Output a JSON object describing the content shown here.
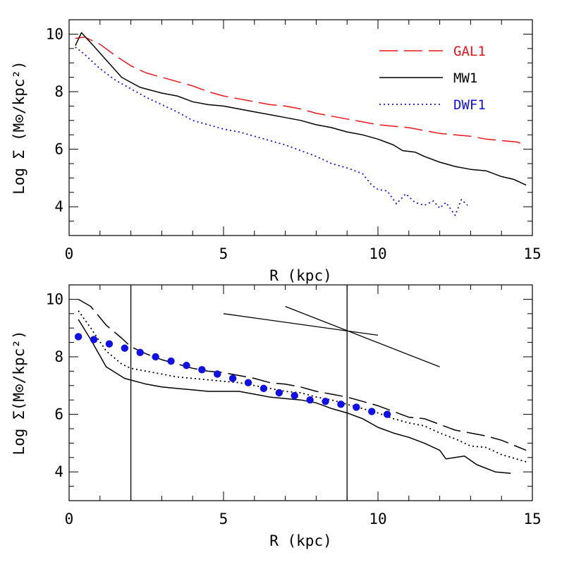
{
  "colors": {
    "red": "#e8141b",
    "black": "#000000",
    "blue": "#1010e6"
  },
  "chart_data": [
    {
      "type": "line",
      "title": "",
      "xlabel": "R (kpc)",
      "ylabel": "Log Σ (M⊙/kpc²)",
      "xlim": [
        0,
        15
      ],
      "ylim": [
        3,
        10.5
      ],
      "xticks": [
        0,
        5,
        10,
        15
      ],
      "yticks": [
        4,
        6,
        8,
        10
      ],
      "legend": "top-right",
      "series": [
        {
          "name": "GAL1",
          "color": "#e8141b",
          "dash": "long-dash",
          "x": [
            0.2,
            0.5,
            1.0,
            1.5,
            2.0,
            2.5,
            3.0,
            3.5,
            4.0,
            4.5,
            5.0,
            5.5,
            6.0,
            6.5,
            7.0,
            7.5,
            8.0,
            8.5,
            9.0,
            9.5,
            10.0,
            10.5,
            11.0,
            11.5,
            12.0,
            12.5,
            13.0,
            13.5,
            14.0,
            14.5,
            14.8
          ],
          "y": [
            9.85,
            9.9,
            9.65,
            9.25,
            8.9,
            8.65,
            8.5,
            8.35,
            8.2,
            8.0,
            7.85,
            7.75,
            7.65,
            7.55,
            7.5,
            7.4,
            7.25,
            7.15,
            7.05,
            6.95,
            6.85,
            6.8,
            6.75,
            6.65,
            6.55,
            6.5,
            6.45,
            6.35,
            6.3,
            6.25,
            6.15
          ]
        },
        {
          "name": "MW1",
          "color": "#000000",
          "dash": "solid",
          "x": [
            0.2,
            0.4,
            0.7,
            1.2,
            1.7,
            2.3,
            3.0,
            3.5,
            4.0,
            4.5,
            5.0,
            5.5,
            6.0,
            6.5,
            7.0,
            7.5,
            8.0,
            8.5,
            9.0,
            9.5,
            10.0,
            10.5,
            10.8,
            11.2,
            11.5,
            12.0,
            12.5,
            13.0,
            13.5,
            14.0,
            14.4,
            14.8
          ],
          "y": [
            9.6,
            10.05,
            9.7,
            9.1,
            8.5,
            8.15,
            7.95,
            7.85,
            7.65,
            7.55,
            7.5,
            7.4,
            7.3,
            7.2,
            7.1,
            7.0,
            6.85,
            6.75,
            6.6,
            6.5,
            6.35,
            6.15,
            5.95,
            5.9,
            5.75,
            5.55,
            5.4,
            5.3,
            5.25,
            5.05,
            4.95,
            4.75
          ]
        },
        {
          "name": "DWF1",
          "color": "#1010e6",
          "dash": "dotted",
          "x": [
            0.2,
            0.5,
            1.0,
            1.5,
            2.0,
            2.5,
            3.0,
            3.5,
            4.0,
            4.5,
            5.0,
            5.5,
            6.0,
            6.5,
            7.0,
            7.5,
            8.0,
            8.5,
            9.0,
            9.5,
            9.8,
            10.0,
            10.3,
            10.6,
            10.9,
            11.2,
            11.5,
            11.8,
            12.0,
            12.2,
            12.5,
            12.7,
            12.9
          ],
          "y": [
            9.55,
            9.3,
            8.8,
            8.4,
            8.1,
            7.8,
            7.55,
            7.3,
            7.0,
            6.85,
            6.7,
            6.6,
            6.45,
            6.3,
            6.15,
            5.95,
            5.75,
            5.5,
            5.35,
            5.15,
            4.75,
            4.6,
            4.55,
            4.1,
            4.45,
            4.15,
            4.05,
            4.2,
            3.95,
            4.15,
            3.7,
            4.25,
            4.05
          ]
        }
      ]
    },
    {
      "type": "line",
      "title": "",
      "xlabel": "R (kpc)",
      "ylabel": "Log Σ(M⊙/kpc²)",
      "xlim": [
        0,
        15
      ],
      "ylim": [
        3,
        10.5
      ],
      "xticks": [
        0,
        5,
        10,
        15
      ],
      "yticks": [
        4,
        6,
        8,
        10
      ],
      "vertical_lines": [
        2,
        9
      ],
      "series": [
        {
          "color": "#000000",
          "dash": "long-dash",
          "x": [
            0.3,
            0.7,
            1.2,
            1.7,
            2.0,
            2.5,
            3.0,
            3.5,
            4.0,
            4.5,
            5.0,
            5.5,
            6.0,
            6.5,
            7.0,
            7.5,
            8.0,
            8.5,
            9.0,
            9.5,
            10.0,
            10.5,
            11.0,
            11.5,
            12.0,
            12.5,
            13.0,
            13.5,
            14.0,
            14.8
          ],
          "y": [
            10.0,
            9.75,
            9.1,
            8.65,
            8.35,
            8.1,
            7.9,
            7.75,
            7.6,
            7.5,
            7.45,
            7.35,
            7.25,
            7.1,
            7.05,
            6.95,
            6.8,
            6.7,
            6.6,
            6.45,
            6.3,
            6.1,
            5.9,
            5.85,
            5.65,
            5.45,
            5.35,
            5.25,
            5.1,
            4.75
          ]
        },
        {
          "color": "#000000",
          "dash": "solid",
          "x": [
            0.3,
            0.7,
            1.2,
            1.8,
            2.5,
            3.0,
            3.5,
            4.0,
            4.5,
            5.0,
            5.5,
            6.0,
            6.5,
            7.0,
            7.5,
            8.0,
            8.5,
            9.0,
            9.5,
            10.0,
            10.5,
            11.0,
            11.5,
            12.0,
            12.2,
            12.8,
            13.2,
            13.8,
            14.3
          ],
          "y": [
            9.3,
            8.6,
            7.65,
            7.25,
            7.05,
            6.95,
            6.9,
            6.85,
            6.8,
            6.8,
            6.8,
            6.7,
            6.6,
            6.55,
            6.5,
            6.4,
            6.2,
            6.05,
            5.85,
            5.55,
            5.35,
            5.2,
            5.0,
            4.75,
            4.45,
            4.55,
            4.25,
            4.0,
            3.95
          ]
        },
        {
          "color": "#000000",
          "dash": "dotted",
          "x": [
            0.3,
            0.7,
            1.2,
            1.7,
            2.0,
            2.5,
            3.0,
            3.5,
            4.0,
            4.5,
            5.0,
            5.5,
            6.0,
            6.5,
            7.0,
            7.5,
            8.0,
            8.5,
            9.0,
            9.5,
            10.0,
            10.5,
            11.0,
            11.5,
            12.0,
            12.5,
            13.0,
            13.5,
            14.0,
            14.8
          ],
          "y": [
            9.6,
            9.0,
            8.2,
            7.75,
            7.6,
            7.5,
            7.4,
            7.3,
            7.25,
            7.2,
            7.15,
            7.1,
            7.0,
            6.9,
            6.8,
            6.75,
            6.6,
            6.5,
            6.35,
            6.2,
            6.05,
            5.85,
            5.7,
            5.6,
            5.35,
            5.15,
            4.9,
            4.85,
            4.6,
            4.35
          ]
        },
        {
          "color": "#1010e6",
          "dash": "markers",
          "x": [
            0.3,
            0.8,
            1.3,
            1.8,
            2.3,
            2.8,
            3.3,
            3.8,
            4.3,
            4.8,
            5.3,
            5.8,
            6.3,
            6.8,
            7.3,
            7.8,
            8.3,
            8.8,
            9.3,
            9.8,
            10.3
          ],
          "y": [
            8.7,
            8.6,
            8.45,
            8.3,
            8.15,
            8.0,
            7.85,
            7.7,
            7.55,
            7.4,
            7.25,
            7.1,
            6.9,
            6.75,
            6.65,
            6.5,
            6.45,
            6.35,
            6.25,
            6.1,
            6.0
          ]
        }
      ],
      "extra_segments": [
        {
          "x": [
            5,
            10.0
          ],
          "y": [
            9.5,
            8.75
          ]
        },
        {
          "x": [
            7.0,
            12.0
          ],
          "y": [
            9.75,
            7.65
          ]
        }
      ]
    }
  ]
}
